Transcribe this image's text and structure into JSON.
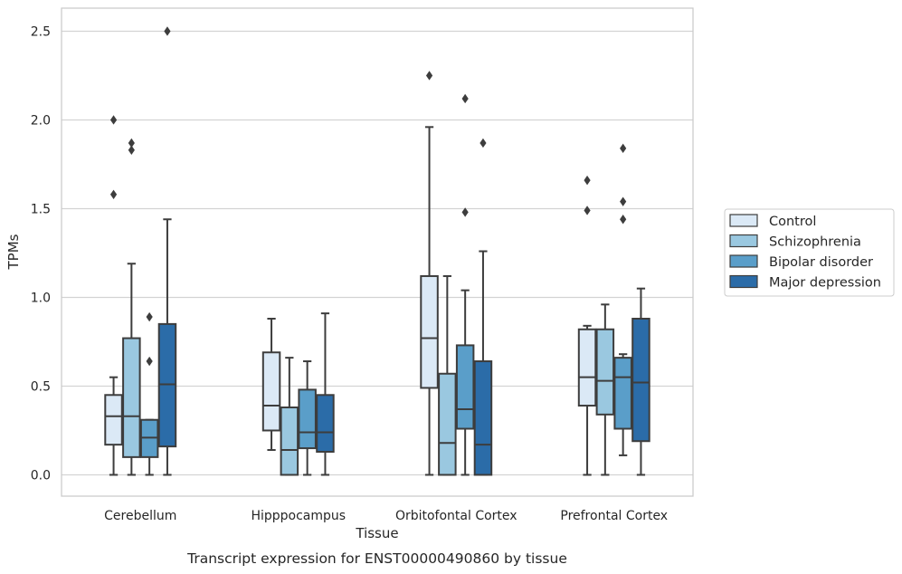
{
  "chart_data": {
    "type": "box",
    "xlabel": "Tissue",
    "ylabel": "TPMs",
    "caption": "Transcript expression for ENST00000490860 by tissue",
    "ylim": [
      -0.12,
      2.63
    ],
    "yticks": [
      0.0,
      0.5,
      1.0,
      1.5,
      2.0,
      2.5
    ],
    "ytick_labels": [
      "0.0",
      "0.5",
      "1.0",
      "1.5",
      "2.0",
      "2.5"
    ],
    "grid": true,
    "legend_position": "right",
    "categories": [
      "Cerebellum",
      "Hipppocampus",
      "Orbitofontal Cortex",
      "Prefrontal Cortex"
    ],
    "series": [
      {
        "name": "Control",
        "color": "#dbe9f6",
        "boxes": [
          {
            "whisker_low": 0.0,
            "q1": 0.17,
            "median": 0.33,
            "q3": 0.45,
            "whisker_high": 0.55,
            "outliers": [
              1.58,
              2.0
            ]
          },
          {
            "whisker_low": 0.14,
            "q1": 0.25,
            "median": 0.39,
            "q3": 0.69,
            "whisker_high": 0.88,
            "outliers": []
          },
          {
            "whisker_low": 0.0,
            "q1": 0.49,
            "median": 0.77,
            "q3": 1.12,
            "whisker_high": 1.96,
            "outliers": [
              2.25
            ]
          },
          {
            "whisker_low": 0.0,
            "q1": 0.39,
            "median": 0.55,
            "q3": 0.82,
            "whisker_high": 0.84,
            "outliers": [
              1.49,
              1.66
            ]
          }
        ]
      },
      {
        "name": "Schizophrenia",
        "color": "#9ac8e0",
        "boxes": [
          {
            "whisker_low": 0.0,
            "q1": 0.1,
            "median": 0.33,
            "q3": 0.77,
            "whisker_high": 1.19,
            "outliers": [
              1.83,
              1.87
            ]
          },
          {
            "whisker_low": 0.0,
            "q1": 0.0,
            "median": 0.14,
            "q3": 0.38,
            "whisker_high": 0.66,
            "outliers": []
          },
          {
            "whisker_low": 0.0,
            "q1": 0.0,
            "median": 0.18,
            "q3": 0.57,
            "whisker_high": 1.12,
            "outliers": []
          },
          {
            "whisker_low": 0.0,
            "q1": 0.34,
            "median": 0.53,
            "q3": 0.82,
            "whisker_high": 0.96,
            "outliers": []
          }
        ]
      },
      {
        "name": "Bipolar disorder",
        "color": "#5a9ec9",
        "boxes": [
          {
            "whisker_low": 0.0,
            "q1": 0.1,
            "median": 0.21,
            "q3": 0.31,
            "whisker_high": 0.31,
            "outliers": [
              0.64,
              0.89
            ]
          },
          {
            "whisker_low": 0.0,
            "q1": 0.15,
            "median": 0.24,
            "q3": 0.48,
            "whisker_high": 0.64,
            "outliers": []
          },
          {
            "whisker_low": 0.0,
            "q1": 0.26,
            "median": 0.37,
            "q3": 0.73,
            "whisker_high": 1.04,
            "outliers": [
              1.48,
              2.12
            ]
          },
          {
            "whisker_low": 0.11,
            "q1": 0.26,
            "median": 0.55,
            "q3": 0.66,
            "whisker_high": 0.68,
            "outliers": [
              1.44,
              1.54,
              1.84
            ]
          }
        ]
      },
      {
        "name": "Major depression",
        "color": "#2b6ca8",
        "boxes": [
          {
            "whisker_low": 0.0,
            "q1": 0.16,
            "median": 0.51,
            "q3": 0.85,
            "whisker_high": 1.44,
            "outliers": [
              2.5
            ]
          },
          {
            "whisker_low": 0.0,
            "q1": 0.13,
            "median": 0.24,
            "q3": 0.45,
            "whisker_high": 0.91,
            "outliers": []
          },
          {
            "whisker_low": 0.0,
            "q1": 0.0,
            "median": 0.17,
            "q3": 0.64,
            "whisker_high": 1.26,
            "outliers": [
              1.87
            ]
          },
          {
            "whisker_low": 0.0,
            "q1": 0.19,
            "median": 0.52,
            "q3": 0.88,
            "whisker_high": 1.05,
            "outliers": []
          }
        ]
      }
    ]
  }
}
